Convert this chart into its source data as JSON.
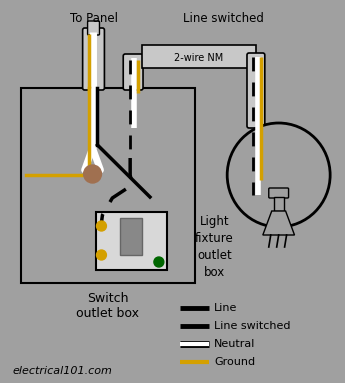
{
  "bg_color": "#a0a0a0",
  "text_color": "#000000",
  "white_color": "#ffffff",
  "black_color": "#000000",
  "gold_color": "#d4a000",
  "brown_color": "#a07050",
  "green_color": "#006600",
  "sheath_color": "#c8c8c8",
  "switch_face_color": "#d8d8d8",
  "toggle_color": "#888888",
  "label_to_panel": "To Panel",
  "label_line_switched": "Line switched",
  "label_2wire": "2-wire NM",
  "label_switch_box": "Switch\noutlet box",
  "label_light_box": "Light\nfixture\noutlet\nbox",
  "label_website": "electrical101.com",
  "legend_items": [
    {
      "label": "Line",
      "style": "solid",
      "color": "#000000"
    },
    {
      "label": "Line switched",
      "style": "dashed",
      "color": "#000000"
    },
    {
      "label": "Neutral",
      "style": "solid",
      "color": "#ffffff"
    },
    {
      "label": "Ground",
      "style": "solid",
      "color": "#d4a000"
    }
  ]
}
